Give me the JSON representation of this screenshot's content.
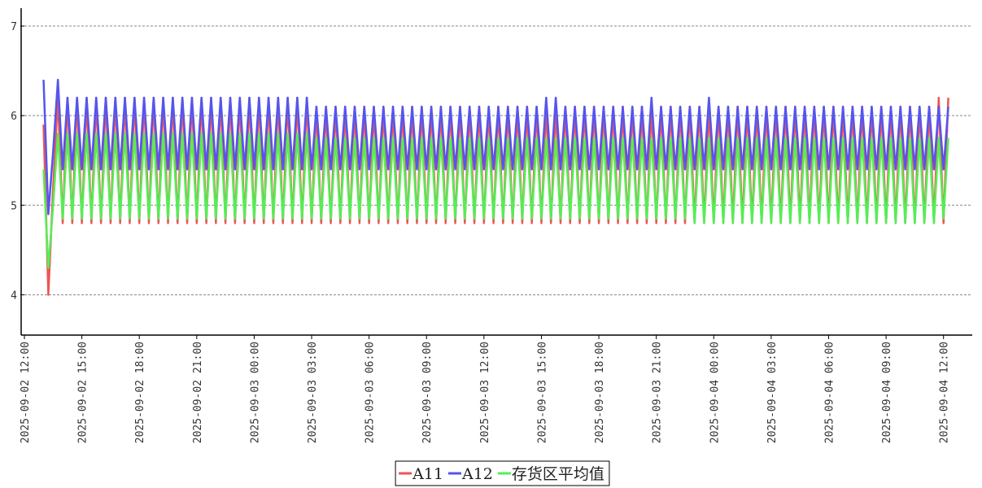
{
  "chart_data": {
    "type": "line",
    "x": [
      "2025-09-02 13:00",
      "2025-09-02 13:15",
      "2025-09-02 13:30",
      "2025-09-02 13:45",
      "2025-09-02 14:00",
      "2025-09-02 14:15",
      "2025-09-02 14:30",
      "2025-09-02 14:45",
      "2025-09-02 15:00",
      "2025-09-02 15:15",
      "2025-09-02 15:30",
      "2025-09-02 15:45",
      "2025-09-02 16:00",
      "2025-09-02 16:15",
      "2025-09-02 16:30",
      "2025-09-02 16:45",
      "2025-09-02 17:00",
      "2025-09-02 17:15",
      "2025-09-02 17:30",
      "2025-09-02 17:45",
      "2025-09-02 18:00",
      "2025-09-02 18:15",
      "2025-09-02 18:30",
      "2025-09-02 18:45",
      "2025-09-02 19:00",
      "2025-09-02 19:15",
      "2025-09-02 19:30",
      "2025-09-02 19:45",
      "2025-09-02 20:00",
      "2025-09-02 20:15",
      "2025-09-02 20:30",
      "2025-09-02 20:45",
      "2025-09-02 21:00",
      "2025-09-02 21:15",
      "2025-09-02 21:30",
      "2025-09-02 21:45",
      "2025-09-02 22:00",
      "2025-09-02 22:15",
      "2025-09-02 22:30",
      "2025-09-02 22:45",
      "2025-09-02 23:00",
      "2025-09-02 23:15",
      "2025-09-02 23:30",
      "2025-09-02 23:45",
      "2025-09-03 00:00",
      "2025-09-03 00:15",
      "2025-09-03 00:30",
      "2025-09-03 00:45",
      "2025-09-03 01:00",
      "2025-09-03 01:15",
      "2025-09-03 01:30",
      "2025-09-03 01:45",
      "2025-09-03 02:00",
      "2025-09-03 02:15",
      "2025-09-03 02:30",
      "2025-09-03 02:45",
      "2025-09-03 03:00",
      "2025-09-03 03:15",
      "2025-09-03 03:30",
      "2025-09-03 03:45",
      "2025-09-03 04:00",
      "2025-09-03 04:15",
      "2025-09-03 04:30",
      "2025-09-03 04:45",
      "2025-09-03 05:00",
      "2025-09-03 05:15",
      "2025-09-03 05:30",
      "2025-09-03 05:45",
      "2025-09-03 06:00",
      "2025-09-03 06:15",
      "2025-09-03 06:30",
      "2025-09-03 06:45",
      "2025-09-03 07:00",
      "2025-09-03 07:15",
      "2025-09-03 07:30",
      "2025-09-03 07:45",
      "2025-09-03 08:00",
      "2025-09-03 08:15",
      "2025-09-03 08:30",
      "2025-09-03 08:45",
      "2025-09-03 09:00",
      "2025-09-03 09:15",
      "2025-09-03 09:30",
      "2025-09-03 09:45",
      "2025-09-03 10:00",
      "2025-09-03 10:15",
      "2025-09-03 10:30",
      "2025-09-03 10:45",
      "2025-09-03 11:00",
      "2025-09-03 11:15",
      "2025-09-03 11:30",
      "2025-09-03 11:45",
      "2025-09-03 12:00",
      "2025-09-03 12:15",
      "2025-09-03 12:30",
      "2025-09-03 12:45",
      "2025-09-03 13:00",
      "2025-09-03 13:15",
      "2025-09-03 13:30",
      "2025-09-03 13:45",
      "2025-09-03 14:00",
      "2025-09-03 14:15",
      "2025-09-03 14:30",
      "2025-09-03 14:45",
      "2025-09-03 15:00",
      "2025-09-03 15:15",
      "2025-09-03 15:30",
      "2025-09-03 15:45",
      "2025-09-03 16:00",
      "2025-09-03 16:15",
      "2025-09-03 16:30",
      "2025-09-03 16:45",
      "2025-09-03 17:00",
      "2025-09-03 17:15",
      "2025-09-03 17:30",
      "2025-09-03 17:45",
      "2025-09-03 18:00",
      "2025-09-03 18:15",
      "2025-09-03 18:30",
      "2025-09-03 18:45",
      "2025-09-03 19:00",
      "2025-09-03 19:15",
      "2025-09-03 19:30",
      "2025-09-03 19:45",
      "2025-09-03 20:00",
      "2025-09-03 20:15",
      "2025-09-03 20:30",
      "2025-09-03 20:45",
      "2025-09-03 21:00",
      "2025-09-03 21:15",
      "2025-09-03 21:30",
      "2025-09-03 21:45",
      "2025-09-03 22:00",
      "2025-09-03 22:15",
      "2025-09-03 22:30",
      "2025-09-03 22:45",
      "2025-09-03 23:00",
      "2025-09-03 23:15",
      "2025-09-03 23:30",
      "2025-09-03 23:45",
      "2025-09-04 00:00",
      "2025-09-04 00:15",
      "2025-09-04 00:30",
      "2025-09-04 00:45",
      "2025-09-04 01:00",
      "2025-09-04 01:15",
      "2025-09-04 01:30",
      "2025-09-04 01:45",
      "2025-09-04 02:00",
      "2025-09-04 02:15",
      "2025-09-04 02:30",
      "2025-09-04 02:45",
      "2025-09-04 03:00",
      "2025-09-04 03:15",
      "2025-09-04 03:30",
      "2025-09-04 03:45",
      "2025-09-04 04:00",
      "2025-09-04 04:15",
      "2025-09-04 04:30",
      "2025-09-04 04:45",
      "2025-09-04 05:00",
      "2025-09-04 05:15",
      "2025-09-04 05:30",
      "2025-09-04 05:45",
      "2025-09-04 06:00",
      "2025-09-04 06:15",
      "2025-09-04 06:30",
      "2025-09-04 06:45",
      "2025-09-04 07:00",
      "2025-09-04 07:15",
      "2025-09-04 07:30",
      "2025-09-04 07:45",
      "2025-09-04 08:00",
      "2025-09-04 08:15",
      "2025-09-04 08:30",
      "2025-09-04 08:45",
      "2025-09-04 09:00",
      "2025-09-04 09:15",
      "2025-09-04 09:30",
      "2025-09-04 09:45",
      "2025-09-04 10:00",
      "2025-09-04 10:15",
      "2025-09-04 10:30",
      "2025-09-04 10:45",
      "2025-09-04 11:00",
      "2025-09-04 11:15",
      "2025-09-04 11:30",
      "2025-09-04 11:45",
      "2025-09-04 12:00",
      "2025-09-04 12:15"
    ],
    "series": [
      {
        "name": "A11",
        "color": "#ee5555",
        "values": [
          5.9,
          4.0,
          5.2,
          6.2,
          4.8,
          6.2,
          4.8,
          6.2,
          4.8,
          6.2,
          4.8,
          6.2,
          4.8,
          6.2,
          4.8,
          6.2,
          4.8,
          6.2,
          4.8,
          6.2,
          4.8,
          6.2,
          4.8,
          6.2,
          4.8,
          6.2,
          4.8,
          6.2,
          4.8,
          6.2,
          4.8,
          6.2,
          4.8,
          6.2,
          4.8,
          6.2,
          4.8,
          6.2,
          4.8,
          6.2,
          4.8,
          6.2,
          4.8,
          6.2,
          4.8,
          6.2,
          4.8,
          6.2,
          4.8,
          6.2,
          4.8,
          6.2,
          4.8,
          6.2,
          4.8,
          6.2,
          4.8,
          6.1,
          4.8,
          6.1,
          4.8,
          6.1,
          4.8,
          6.1,
          4.8,
          6.1,
          4.8,
          6.1,
          4.8,
          6.1,
          4.8,
          6.1,
          4.8,
          6.1,
          4.8,
          6.1,
          4.8,
          6.1,
          4.8,
          6.1,
          4.8,
          6.1,
          4.8,
          6.1,
          4.8,
          6.1,
          4.8,
          6.1,
          4.8,
          6.1,
          4.8,
          6.1,
          4.8,
          6.1,
          4.8,
          6.1,
          4.8,
          6.1,
          4.8,
          6.1,
          4.8,
          6.1,
          4.8,
          6.1,
          4.8,
          6.1,
          4.8,
          6.1,
          4.8,
          6.1,
          4.8,
          6.1,
          4.8,
          6.1,
          4.8,
          6.1,
          4.8,
          6.1,
          4.8,
          6.1,
          4.8,
          6.1,
          4.8,
          6.1,
          4.8,
          6.1,
          4.8,
          6.1,
          4.8,
          6.1,
          4.8,
          6.1,
          4.8,
          6.1,
          4.8,
          6.1,
          4.8,
          6.1,
          4.8,
          6.1,
          4.8,
          6.1,
          4.8,
          6.1,
          4.8,
          6.1,
          4.8,
          6.1,
          4.8,
          6.1,
          4.8,
          6.1,
          4.8,
          6.1,
          4.8,
          6.1,
          4.8,
          6.1,
          4.8,
          6.1,
          4.8,
          6.1,
          4.8,
          6.1,
          4.8,
          6.1,
          4.8,
          6.1,
          4.8,
          6.1,
          4.8,
          6.1,
          4.8,
          6.1,
          4.8,
          6.1,
          4.8,
          6.1,
          4.8,
          6.1,
          4.8,
          6.1,
          4.8,
          6.1,
          4.8,
          6.1,
          4.8,
          6.2,
          4.8,
          6.2
        ]
      },
      {
        "name": "A12",
        "color": "#5555ee",
        "values": [
          6.4,
          4.9,
          5.6,
          6.4,
          5.4,
          6.2,
          5.4,
          6.2,
          5.4,
          6.2,
          5.4,
          6.2,
          5.4,
          6.2,
          5.4,
          6.2,
          5.4,
          6.2,
          5.4,
          6.2,
          5.4,
          6.2,
          5.4,
          6.2,
          5.4,
          6.2,
          5.4,
          6.2,
          5.4,
          6.2,
          5.4,
          6.2,
          5.4,
          6.2,
          5.4,
          6.2,
          5.4,
          6.2,
          5.4,
          6.2,
          5.4,
          6.2,
          5.4,
          6.2,
          5.4,
          6.2,
          5.4,
          6.2,
          5.4,
          6.2,
          5.4,
          6.2,
          5.4,
          6.2,
          5.4,
          6.2,
          5.4,
          6.1,
          5.4,
          6.1,
          5.4,
          6.1,
          5.4,
          6.1,
          5.4,
          6.1,
          5.4,
          6.1,
          5.4,
          6.1,
          5.4,
          6.1,
          5.4,
          6.1,
          5.4,
          6.1,
          5.4,
          6.1,
          5.4,
          6.1,
          5.4,
          6.1,
          5.4,
          6.1,
          5.4,
          6.1,
          5.4,
          6.1,
          5.4,
          6.1,
          5.4,
          6.1,
          5.4,
          6.1,
          5.4,
          6.1,
          5.4,
          6.1,
          5.4,
          6.1,
          5.4,
          6.1,
          5.4,
          6.1,
          5.4,
          6.2,
          5.4,
          6.2,
          5.4,
          6.1,
          5.4,
          6.1,
          5.4,
          6.1,
          5.4,
          6.1,
          5.4,
          6.1,
          5.4,
          6.1,
          5.4,
          6.1,
          5.4,
          6.1,
          5.4,
          6.1,
          5.4,
          6.2,
          5.4,
          6.1,
          5.4,
          6.1,
          5.4,
          6.1,
          5.4,
          6.1,
          5.4,
          6.1,
          5.4,
          6.2,
          5.4,
          6.1,
          5.4,
          6.1,
          5.4,
          6.1,
          5.4,
          6.1,
          5.4,
          6.1,
          5.4,
          6.1,
          5.4,
          6.1,
          5.4,
          6.1,
          5.4,
          6.1,
          5.4,
          6.1,
          5.4,
          6.1,
          5.4,
          6.1,
          5.4,
          6.1,
          5.4,
          6.1,
          5.4,
          6.1,
          5.4,
          6.1,
          5.4,
          6.1,
          5.4,
          6.1,
          5.4,
          6.1,
          5.4,
          6.1,
          5.4,
          6.1,
          5.4,
          6.1,
          5.4,
          6.1,
          5.4,
          6.1,
          5.4,
          6.1
        ]
      },
      {
        "name": "存货区平均值",
        "color": "#55ee55",
        "values": [
          5.4,
          4.3,
          5.0,
          5.8,
          4.85,
          5.8,
          4.85,
          5.8,
          4.85,
          5.8,
          4.85,
          5.8,
          4.85,
          5.8,
          4.85,
          5.8,
          4.85,
          5.8,
          4.85,
          5.8,
          4.85,
          5.8,
          4.85,
          5.8,
          4.85,
          5.8,
          4.85,
          5.8,
          4.85,
          5.8,
          4.85,
          5.8,
          4.85,
          5.8,
          4.85,
          5.8,
          4.85,
          5.8,
          4.85,
          5.8,
          4.85,
          5.8,
          4.85,
          5.8,
          4.85,
          5.8,
          4.85,
          5.8,
          4.85,
          5.8,
          4.85,
          5.8,
          4.85,
          5.8,
          4.85,
          5.8,
          4.85,
          5.75,
          4.85,
          5.75,
          4.85,
          5.75,
          4.85,
          5.75,
          4.85,
          5.75,
          4.85,
          5.75,
          4.85,
          5.75,
          4.85,
          5.75,
          4.85,
          5.75,
          4.85,
          5.75,
          4.85,
          5.75,
          4.85,
          5.75,
          4.85,
          5.75,
          4.85,
          5.75,
          4.85,
          5.75,
          4.85,
          5.75,
          4.85,
          5.75,
          4.85,
          5.75,
          4.85,
          5.75,
          4.85,
          5.75,
          4.85,
          5.75,
          4.85,
          5.75,
          4.85,
          5.75,
          4.85,
          5.75,
          4.85,
          5.75,
          4.85,
          5.75,
          4.85,
          5.75,
          4.85,
          5.75,
          4.85,
          5.75,
          4.85,
          5.75,
          4.85,
          5.75,
          4.85,
          5.75,
          4.85,
          5.75,
          4.85,
          5.75,
          4.85,
          5.75,
          4.85,
          5.75,
          4.85,
          5.75,
          4.85,
          5.75,
          4.85,
          5.75,
          4.85,
          5.75,
          4.8,
          5.75,
          4.8,
          5.75,
          4.8,
          5.75,
          4.8,
          5.75,
          4.8,
          5.75,
          4.8,
          5.75,
          4.8,
          5.75,
          4.8,
          5.75,
          4.8,
          5.75,
          4.8,
          5.75,
          4.8,
          5.75,
          4.8,
          5.75,
          4.8,
          5.75,
          4.8,
          5.75,
          4.8,
          5.75,
          4.8,
          5.75,
          4.8,
          5.75,
          4.8,
          5.75,
          4.8,
          5.75,
          4.8,
          5.75,
          4.8,
          5.75,
          4.8,
          5.75,
          4.8,
          5.75,
          4.8,
          5.75,
          4.8,
          5.75,
          4.8,
          5.75,
          4.85,
          5.75
        ]
      }
    ],
    "xlim": [
      "2025-09-02 12:00",
      "2025-09-04 13:30"
    ],
    "xticks": [
      "2025-09-02 12:00",
      "2025-09-02 15:00",
      "2025-09-02 18:00",
      "2025-09-02 21:00",
      "2025-09-03 00:00",
      "2025-09-03 03:00",
      "2025-09-03 06:00",
      "2025-09-03 09:00",
      "2025-09-03 12:00",
      "2025-09-03 15:00",
      "2025-09-03 18:00",
      "2025-09-03 21:00",
      "2025-09-04 00:00",
      "2025-09-04 03:00",
      "2025-09-04 06:00",
      "2025-09-04 09:00",
      "2025-09-04 12:00"
    ],
    "ylim": [
      3.55,
      7.2
    ],
    "yticks": [
      4,
      5,
      6,
      7
    ],
    "grid": true,
    "legend": "bottom"
  }
}
